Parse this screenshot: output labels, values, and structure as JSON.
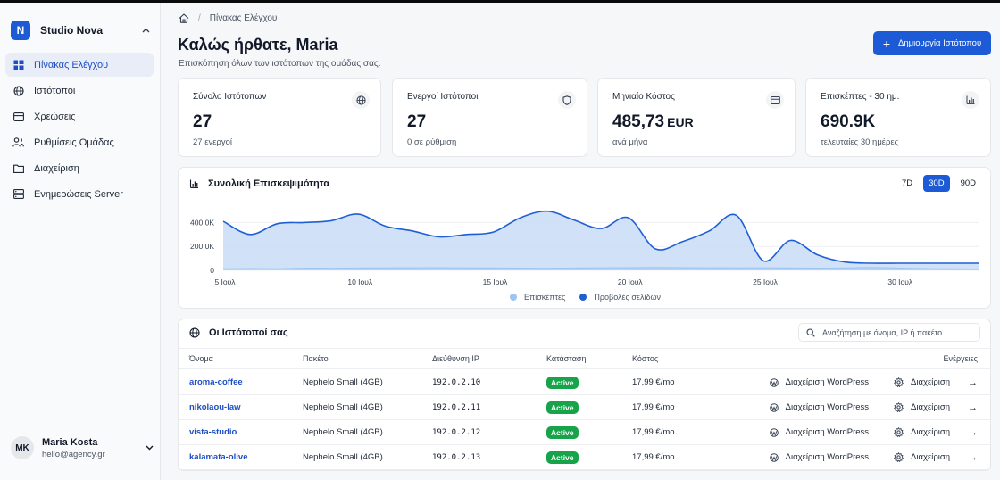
{
  "workspace": {
    "initial": "N",
    "name": "Studio Nova"
  },
  "sidebar": {
    "items": [
      {
        "label": "Πίνακας Ελέγχου"
      },
      {
        "label": "Ιστότοποι"
      },
      {
        "label": "Χρεώσεις"
      },
      {
        "label": "Ρυθμίσεις Ομάδας"
      },
      {
        "label": "Διαχείριση"
      },
      {
        "label": "Ενημερώσεις Server"
      }
    ]
  },
  "user": {
    "initials": "MK",
    "name": "Maria Kosta",
    "email": "hello@agency.gr"
  },
  "header": {
    "breadcrumb": "Πίνακας Ελέγχου",
    "title": "Καλώς ήρθατε, Maria",
    "subtitle": "Επισκόπηση όλων των ιστότοπων της ομάδας σας.",
    "create_label": "Δημιουργία Ιστότοπου"
  },
  "stats": [
    {
      "label": "Σύνολο Ιστότοπων",
      "value": "27",
      "unit": "",
      "note": "27 ενεργοί",
      "icon": "globe-icon"
    },
    {
      "label": "Ενεργοί Ιστότοποι",
      "value": "27",
      "unit": "",
      "note": "0 σε ρύθμιση",
      "icon": "shield-icon"
    },
    {
      "label": "Μηνιαίο Κόστος",
      "value": "485,73",
      "unit": "EUR",
      "note": "ανά μήνα",
      "icon": "card-icon"
    },
    {
      "label": "Επισκέπτες - 30 ημ.",
      "value": "690.9K",
      "unit": "",
      "note": "τελευταίες 30 ημέρες",
      "icon": "bar-chart-icon"
    }
  ],
  "chart": {
    "title": "Συνολική Επισκεψιμότητα",
    "ranges": [
      "7D",
      "30D",
      "90D"
    ],
    "active_range": "30D"
  },
  "chart_data": {
    "type": "area",
    "x": [
      "5 Ιουλ",
      "6 Ιουλ",
      "7 Ιουλ",
      "8 Ιουλ",
      "9 Ιουλ",
      "10 Ιουλ",
      "11 Ιουλ",
      "12 Ιουλ",
      "13 Ιουλ",
      "14 Ιουλ",
      "15 Ιουλ",
      "16 Ιουλ",
      "17 Ιουλ",
      "18 Ιουλ",
      "19 Ιουλ",
      "20 Ιουλ",
      "21 Ιουλ",
      "22 Ιουλ",
      "23 Ιουλ",
      "24 Ιουλ",
      "25 Ιουλ",
      "26 Ιουλ",
      "27 Ιουλ",
      "28 Ιουλ",
      "29 Ιουλ",
      "30 Ιουλ",
      "31 Ιουλ",
      "1 Αυγ",
      "2 Αυγ"
    ],
    "x_ticks": [
      "5 Ιουλ",
      "10 Ιουλ",
      "15 Ιουλ",
      "20 Ιουλ",
      "25 Ιουλ",
      "30 Ιουλ"
    ],
    "y_ticks": [
      "0",
      "200.0K",
      "400.0K"
    ],
    "ylim": [
      0,
      560000
    ],
    "series": [
      {
        "name": "Επισκέπτες",
        "color": "#9ec5f2",
        "values": [
          12000,
          14000,
          13000,
          18000,
          17000,
          19000,
          20000,
          21000,
          22000,
          20000,
          19000,
          18000,
          17000,
          19000,
          21000,
          22000,
          23000,
          22000,
          21000,
          20000,
          21000,
          19000,
          18000,
          20000,
          24000,
          19000,
          14000,
          12000,
          10000
        ]
      },
      {
        "name": "Προβολές σελίδων",
        "color": "#1f5fd4",
        "values": [
          410000,
          300000,
          390000,
          400000,
          415000,
          470000,
          370000,
          330000,
          280000,
          300000,
          320000,
          440000,
          495000,
          420000,
          350000,
          440000,
          180000,
          240000,
          330000,
          460000,
          80000,
          250000,
          130000,
          70000,
          60000,
          60000,
          60000,
          60000,
          60000
        ]
      }
    ]
  },
  "sites": {
    "title": "Οι Ιστότοποί σας",
    "search_placeholder": "Αναζήτηση με όνομα, IP ή πακέτο...",
    "columns": {
      "name": "Όνομα",
      "plan": "Πακέτο",
      "ip": "Διεύθυνση IP",
      "status": "Κατάσταση",
      "cost": "Κόστος",
      "actions": "Ενέργειες"
    },
    "wp_label": "Διαχείριση WordPress",
    "manage_label": "Διαχείριση",
    "rows": [
      {
        "name": "aroma-coffee",
        "plan": "Nephelo Small (4GB)",
        "ip": "192.0.2.10",
        "status": "Active",
        "cost": "17,99 €/mo"
      },
      {
        "name": "nikolaou-law",
        "plan": "Nephelo Small (4GB)",
        "ip": "192.0.2.11",
        "status": "Active",
        "cost": "17,99 €/mo"
      },
      {
        "name": "vista-studio",
        "plan": "Nephelo Small (4GB)",
        "ip": "192.0.2.12",
        "status": "Active",
        "cost": "17,99 €/mo"
      },
      {
        "name": "kalamata-olive",
        "plan": "Nephelo Small (4GB)",
        "ip": "192.0.2.13",
        "status": "Active",
        "cost": "17,99 €/mo"
      }
    ]
  }
}
